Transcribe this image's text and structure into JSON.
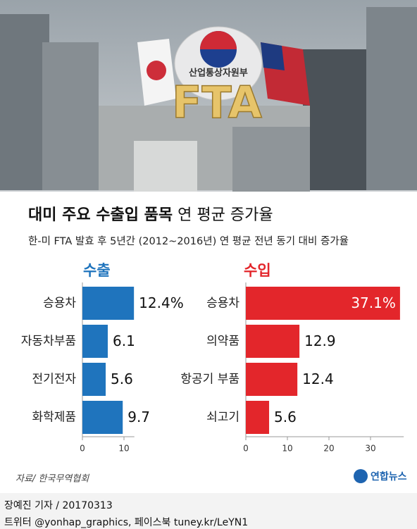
{
  "banner": {
    "ministry": "산업통상자원부",
    "label": "FTA"
  },
  "header": {
    "title_bold": "대미 주요 수출입 품목",
    "title_rest": "연 평균 증가율",
    "subtitle": "한-미 FTA 발효 후 5년간 (2012~2016년) 연 평균 전년 동기 대비 증가율"
  },
  "chart_data": [
    {
      "type": "hbar",
      "title": "수출",
      "color": "#1f74bd",
      "categories": [
        "승용차",
        "자동차부품",
        "전기전자",
        "화학제품"
      ],
      "values": [
        12.4,
        6.1,
        5.6,
        9.7
      ],
      "value_labels": [
        "12.4%",
        "6.1",
        "5.6",
        "9.7"
      ],
      "xlim": [
        0,
        12.5
      ],
      "xticks": [
        0,
        10
      ]
    },
    {
      "type": "hbar",
      "title": "수입",
      "color": "#e3262b",
      "categories": [
        "승용차",
        "의약품",
        "항공기 부품",
        "쇠고기"
      ],
      "values": [
        37.1,
        12.9,
        12.4,
        5.6
      ],
      "value_labels": [
        "37.1%",
        "12.9",
        "12.4",
        "5.6"
      ],
      "xlim": [
        0,
        38
      ],
      "xticks": [
        0,
        10,
        20,
        30
      ]
    }
  ],
  "footer": {
    "source": "자료/ 한국무역협회",
    "logo": "연합뉴스",
    "credit": "장예진 기자 / 20170313",
    "social": "트위터 @yonhap_graphics, 페이스북 tuney.kr/LeYN1"
  }
}
